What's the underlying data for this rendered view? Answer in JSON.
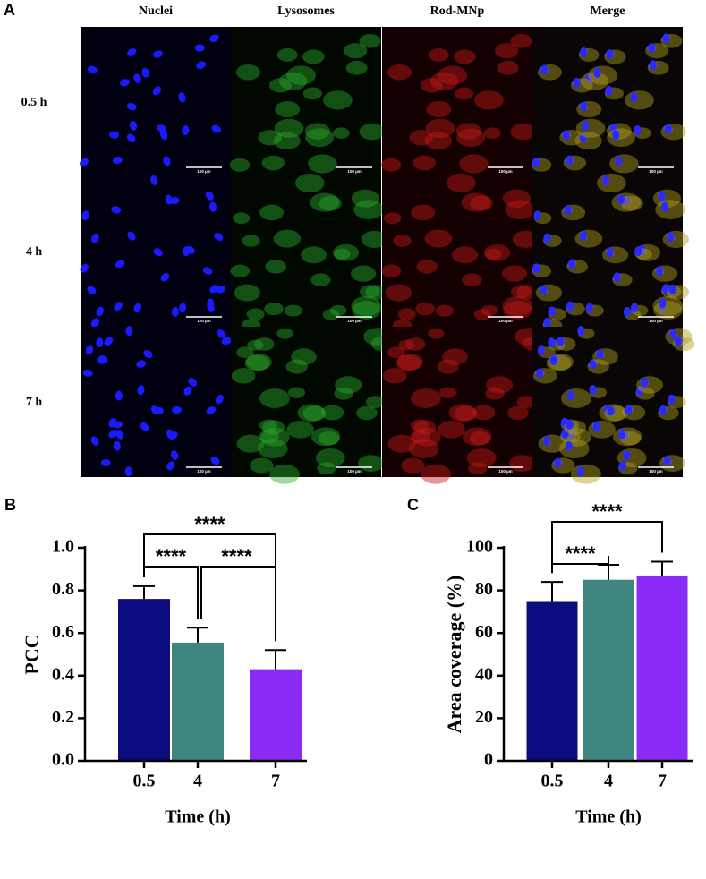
{
  "panel_a": {
    "label": "A",
    "columns": [
      "Nuclei",
      "Lysosomes",
      "Rod-MNp",
      "Merge"
    ],
    "rows": [
      "0.5 h",
      "4 h",
      "7 h"
    ],
    "scale_bar": "100 µm"
  },
  "chart_data": [
    {
      "type": "bar",
      "panel": "B",
      "y_label": "PCC",
      "x_label": "Time (h)",
      "categories": [
        "0.5",
        "4",
        "7"
      ],
      "series": [
        {
          "values": [
            0.76,
            0.555,
            0.43
          ],
          "errors": [
            0.06,
            0.07,
            0.09
          ],
          "colors": [
            "#0c0c80",
            "#3f8580",
            "#8a2cf5"
          ]
        }
      ],
      "ylim": [
        0,
        1.0
      ],
      "yticks": [
        {
          "value": 0,
          "label": "0.0"
        },
        0.2,
        0.4,
        0.6,
        0.8,
        {
          "value": 1.0,
          "label": "1.0"
        }
      ],
      "annotations": [
        {
          "text": "****",
          "between": [
            "0.5",
            "4"
          ]
        },
        {
          "text": "****",
          "between": [
            "4",
            "7"
          ]
        },
        {
          "text": "****",
          "between": [
            "0.5",
            "7"
          ]
        }
      ]
    },
    {
      "type": "bar",
      "panel": "C",
      "y_label": "Area coverage (%)",
      "x_label": "Time (h)",
      "categories": [
        "0.5",
        "4",
        "7"
      ],
      "series": [
        {
          "values": [
            75,
            85,
            87
          ],
          "errors": [
            9,
            7,
            6.5
          ],
          "colors": [
            "#0c0c80",
            "#3f8580",
            "#8a2cf5"
          ]
        }
      ],
      "ylim": [
        0,
        100
      ],
      "yticks": [
        0,
        20,
        40,
        60,
        80,
        100
      ],
      "annotations": [
        {
          "text": "****",
          "between": [
            "0.5",
            "4"
          ]
        },
        {
          "text": "****",
          "between": [
            "0.5",
            "7"
          ]
        }
      ]
    }
  ]
}
